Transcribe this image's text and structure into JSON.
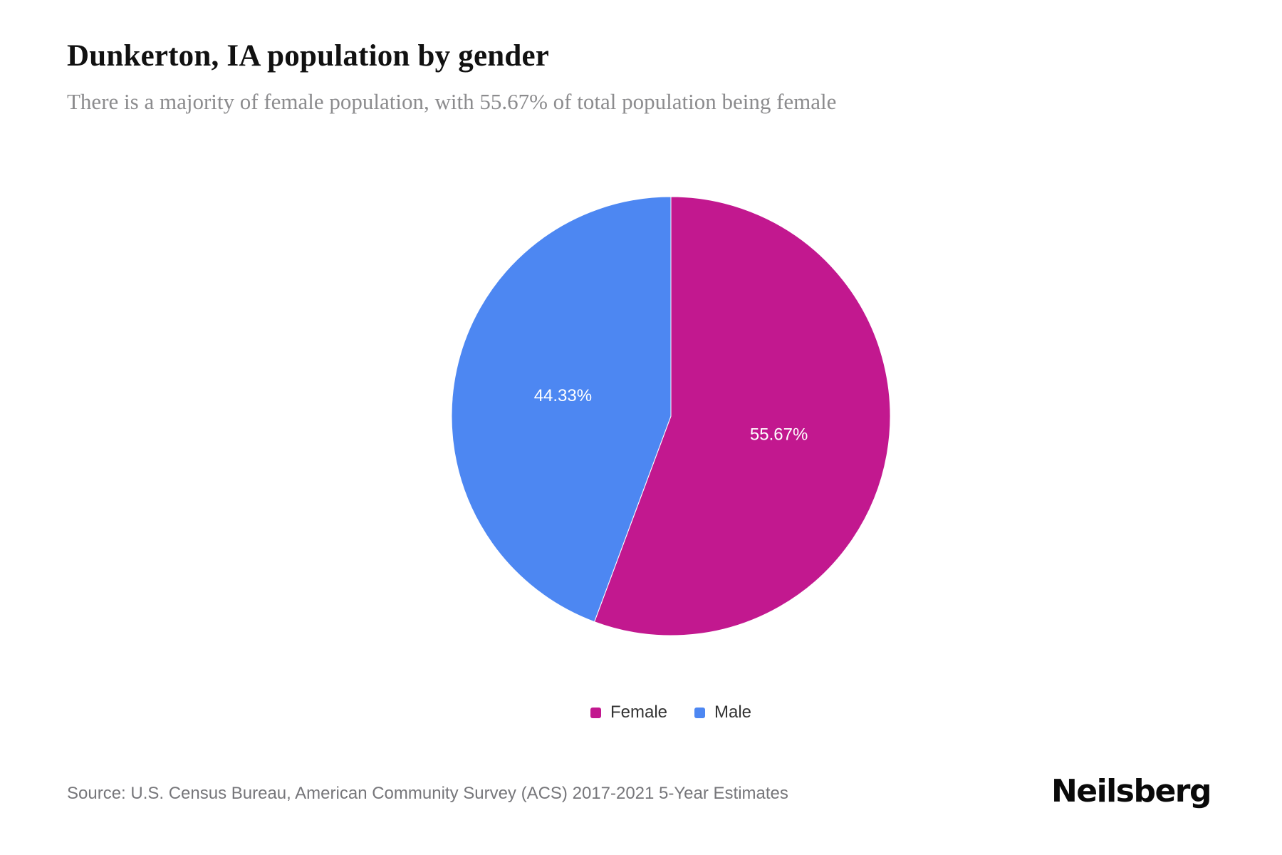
{
  "header": {
    "title": "Dunkerton, IA population by gender",
    "subtitle": "There is a majority of female population, with 55.67% of total population being female"
  },
  "chart_data": {
    "type": "pie",
    "title": "Dunkerton, IA population by gender",
    "categories": [
      "Female",
      "Male"
    ],
    "values": [
      55.67,
      44.33
    ],
    "unit": "%",
    "start_angle": "top",
    "direction": "clockwise",
    "legend_position": "bottom",
    "slices": [
      {
        "label": "Female",
        "value": 55.67,
        "display": "55.67%",
        "color": "#c2188f"
      },
      {
        "label": "Male",
        "value": 44.33,
        "display": "44.33%",
        "color": "#4d87f2"
      }
    ]
  },
  "footer": {
    "source": "Source: U.S. Census Bureau, American Community Survey (ACS) 2017-2021 5-Year Estimates",
    "brand": "Neilsberg"
  }
}
